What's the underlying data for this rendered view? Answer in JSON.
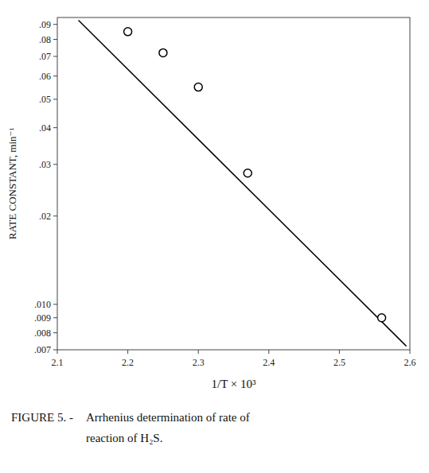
{
  "chart_data": {
    "type": "scatter",
    "log": "y",
    "grid": false,
    "xlabel": "1/T × 10³",
    "ylabel": "RATE CONSTANT, min⁻¹",
    "annotations": [
      "FIGURE 5. -",
      "Arrhenius determination of rate of",
      "reaction of H₂S."
    ],
    "xlim": [
      2.1,
      2.6
    ],
    "ylim": [
      0.007,
      0.095
    ],
    "xticks": [
      2.1,
      2.2,
      2.3,
      2.4,
      2.5,
      2.6
    ],
    "yticks": [
      {
        "value": 0.007,
        "label": ".007"
      },
      {
        "value": 0.008,
        "label": ".008"
      },
      {
        "value": 0.009,
        "label": ".009"
      },
      {
        "value": 0.01,
        "label": ".010"
      },
      {
        "value": 0.02,
        "label": ".02"
      },
      {
        "value": 0.03,
        "label": ".03"
      },
      {
        "value": 0.04,
        "label": ".04"
      },
      {
        "value": 0.05,
        "label": ".05"
      },
      {
        "value": 0.06,
        "label": ".06"
      },
      {
        "value": 0.07,
        "label": ".07"
      },
      {
        "value": 0.08,
        "label": ".08"
      },
      {
        "value": 0.09,
        "label": ".09"
      }
    ],
    "series": [
      {
        "type": "line",
        "color": "#000000",
        "x": [
          2.13,
          2.595
        ],
        "values": [
          0.093,
          0.0072
        ]
      },
      {
        "type": "scatter",
        "color": "#000000",
        "marker": "open-circle",
        "x": [
          2.2,
          2.25,
          2.3,
          2.37,
          2.56
        ],
        "values": [
          0.085,
          0.072,
          0.055,
          0.028,
          0.009
        ]
      }
    ]
  }
}
